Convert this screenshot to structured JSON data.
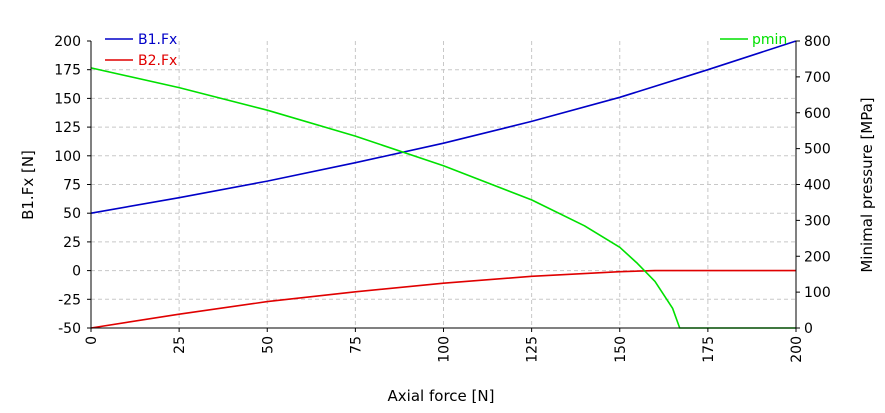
{
  "chart_data": {
    "type": "line",
    "xlabel": "Axial force [N]",
    "ylabel": "B1.Fx [N]",
    "y2label": "Minimal pressure [MPa]",
    "xlim": [
      0,
      200
    ],
    "ylim": [
      -50,
      200
    ],
    "y2lim": [
      0,
      800
    ],
    "xticks": [
      "0",
      "25",
      "50",
      "75",
      "100",
      "125",
      "150",
      "175",
      "200"
    ],
    "yticks": [
      "-50",
      "-25",
      "0",
      "25",
      "50",
      "75",
      "100",
      "125",
      "150",
      "175",
      "200"
    ],
    "y2ticks": [
      "0",
      "100",
      "200",
      "300",
      "400",
      "500",
      "600",
      "700",
      "800"
    ],
    "grid": true,
    "legend_left": "top-left",
    "legend_right": "top-right",
    "series": [
      {
        "name": "B1.Fx",
        "axis": "left",
        "color": "#0000c8",
        "x": [
          0,
          25,
          50,
          75,
          100,
          125,
          150,
          175,
          200
        ],
        "y": [
          50,
          63.5,
          78,
          94,
          111,
          130,
          151,
          175,
          200
        ]
      },
      {
        "name": "B2.Fx",
        "axis": "left",
        "color": "#e00000",
        "x": [
          0,
          25,
          50,
          75,
          100,
          125,
          150,
          160,
          175,
          200
        ],
        "y": [
          -50,
          -38,
          -27,
          -18.5,
          -11,
          -5,
          -1,
          0,
          0,
          0
        ]
      },
      {
        "name": "pmin",
        "axis": "right",
        "color": "#00e000",
        "x": [
          0,
          25,
          50,
          75,
          100,
          125,
          140,
          150,
          155,
          160,
          165,
          167,
          170,
          175,
          200
        ],
        "y": [
          725,
          670,
          607,
          535,
          452,
          357,
          285,
          225,
          180,
          130,
          55,
          0,
          0,
          0,
          0
        ]
      }
    ]
  }
}
